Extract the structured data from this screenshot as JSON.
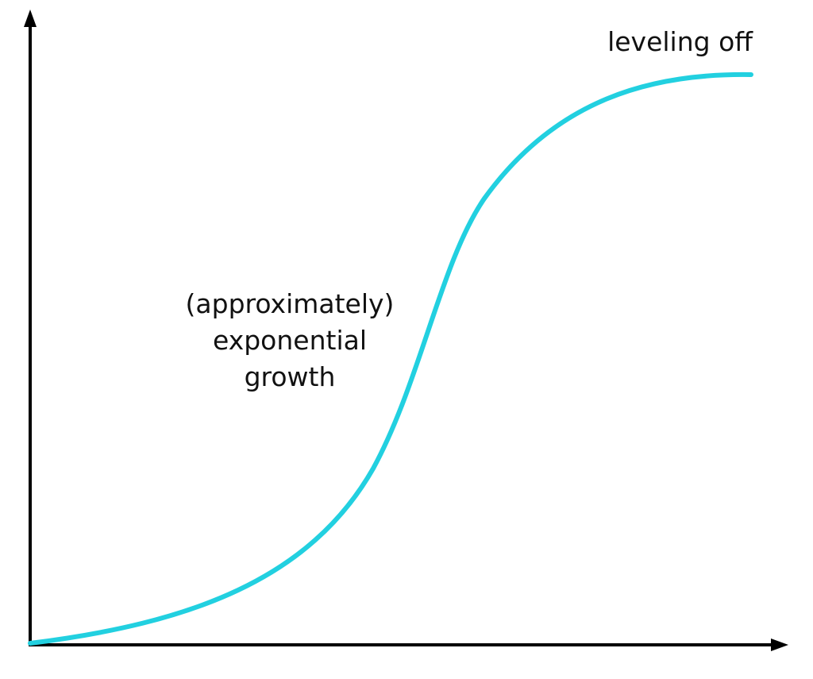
{
  "labels": {
    "plateau": "leveling off",
    "growth": [
      "(approximately)",
      "exponential",
      "growth"
    ]
  }
}
